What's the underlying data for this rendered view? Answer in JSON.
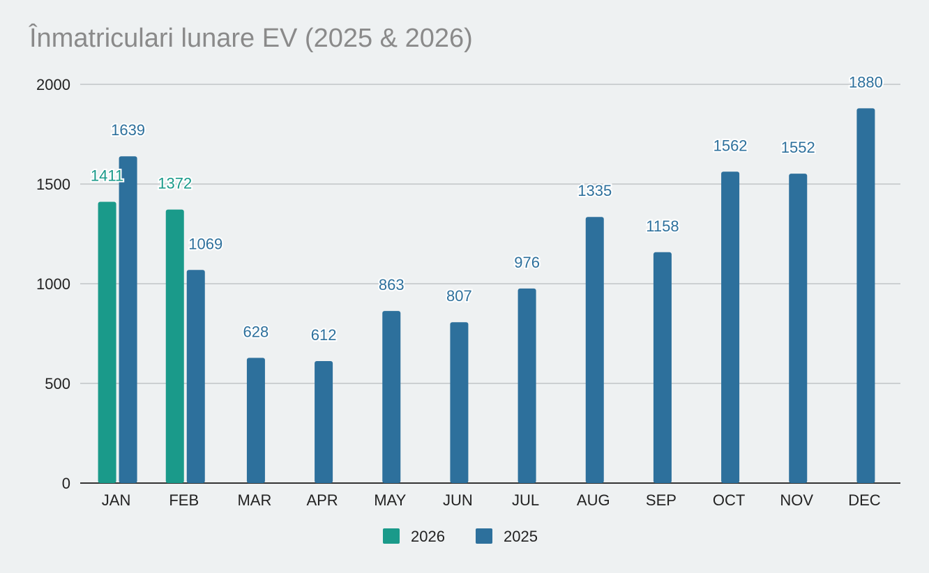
{
  "chart_data": {
    "type": "bar",
    "title": "Înmatriculari lunare EV (2025 & 2026)",
    "xlabel": "",
    "ylabel": "",
    "ylim": [
      0,
      2000
    ],
    "yticks": [
      0,
      500,
      1000,
      1500,
      2000
    ],
    "grid": true,
    "legend_position": "bottom",
    "categories": [
      "JAN",
      "FEB",
      "MAR",
      "APR",
      "MAY",
      "JUN",
      "JUL",
      "AUG",
      "SEP",
      "OCT",
      "NOV",
      "DEC"
    ],
    "series": [
      {
        "name": "2026",
        "color": "#1a9a8a",
        "values": [
          1411,
          1372,
          null,
          null,
          null,
          null,
          null,
          null,
          null,
          null,
          null,
          null
        ],
        "labels": [
          "1411",
          "1372",
          "",
          "",
          "",
          "",
          "",
          "",
          "",
          "",
          "",
          ""
        ]
      },
      {
        "name": "2025",
        "color": "#2d709c",
        "values": [
          1639,
          1069,
          628,
          612,
          863,
          807,
          976,
          1335,
          1158,
          1562,
          1552,
          1880
        ],
        "labels": [
          "1639",
          "1069",
          "628",
          "612",
          "863",
          "807",
          "976",
          "1335",
          "1158",
          "1562",
          "1552",
          "1880"
        ]
      }
    ]
  }
}
